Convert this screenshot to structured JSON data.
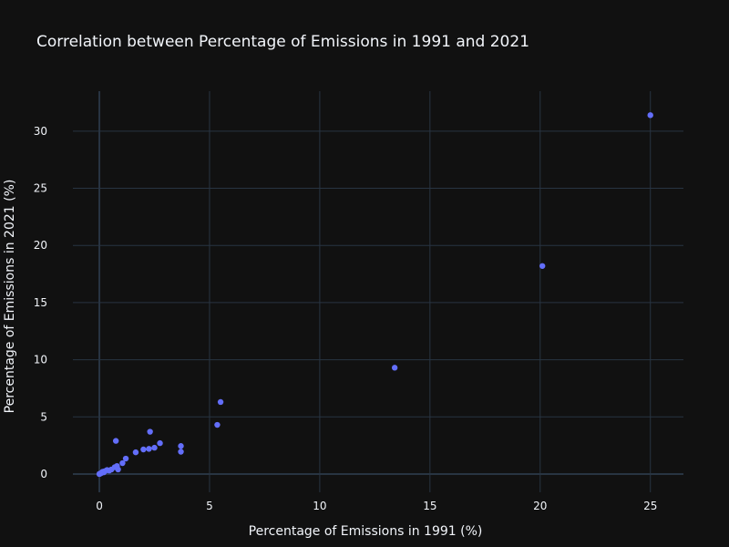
{
  "chart_data": {
    "type": "scatter",
    "title": "Correlation between Percentage of Emissions in 1991 and 2021",
    "xlabel": "Percentage of Emissions in 1991 (%)",
    "ylabel": "Percentage of Emissions in 2021 (%)",
    "xlim": [
      -1.2,
      26.5
    ],
    "ylim": [
      -1.6,
      33.5
    ],
    "x_ticks": [
      0,
      5,
      10,
      15,
      20,
      25
    ],
    "y_ticks": [
      0,
      5,
      10,
      15,
      20,
      25,
      30
    ],
    "grid": true,
    "legend": "none",
    "colors": {
      "background": "#111111",
      "grid": "#283442",
      "zero_line": "#283442",
      "text": "#f2f5fa",
      "marker": "#636efa"
    },
    "points": [
      {
        "x": 25.0,
        "y": 31.4
      },
      {
        "x": 20.1,
        "y": 18.2
      },
      {
        "x": 13.4,
        "y": 9.3
      },
      {
        "x": 5.5,
        "y": 6.3
      },
      {
        "x": 5.35,
        "y": 4.3
      },
      {
        "x": 3.7,
        "y": 2.45
      },
      {
        "x": 3.7,
        "y": 1.95
      },
      {
        "x": 2.75,
        "y": 2.7
      },
      {
        "x": 2.3,
        "y": 3.7
      },
      {
        "x": 2.5,
        "y": 2.3
      },
      {
        "x": 2.25,
        "y": 2.2
      },
      {
        "x": 2.0,
        "y": 2.15
      },
      {
        "x": 1.65,
        "y": 1.9
      },
      {
        "x": 1.2,
        "y": 1.35
      },
      {
        "x": 1.05,
        "y": 0.95
      },
      {
        "x": 0.75,
        "y": 2.9
      },
      {
        "x": 0.8,
        "y": 0.7
      },
      {
        "x": 0.7,
        "y": 0.6
      },
      {
        "x": 0.85,
        "y": 0.4
      },
      {
        "x": 0.55,
        "y": 0.4
      },
      {
        "x": 0.45,
        "y": 0.3
      },
      {
        "x": 0.35,
        "y": 0.35
      },
      {
        "x": 0.25,
        "y": 0.25
      },
      {
        "x": 0.2,
        "y": 0.15
      },
      {
        "x": 0.15,
        "y": 0.2
      },
      {
        "x": 0.1,
        "y": 0.1
      },
      {
        "x": 0.05,
        "y": 0.05
      },
      {
        "x": 0.02,
        "y": 0.02
      },
      {
        "x": 0.0,
        "y": 0.0
      }
    ]
  }
}
